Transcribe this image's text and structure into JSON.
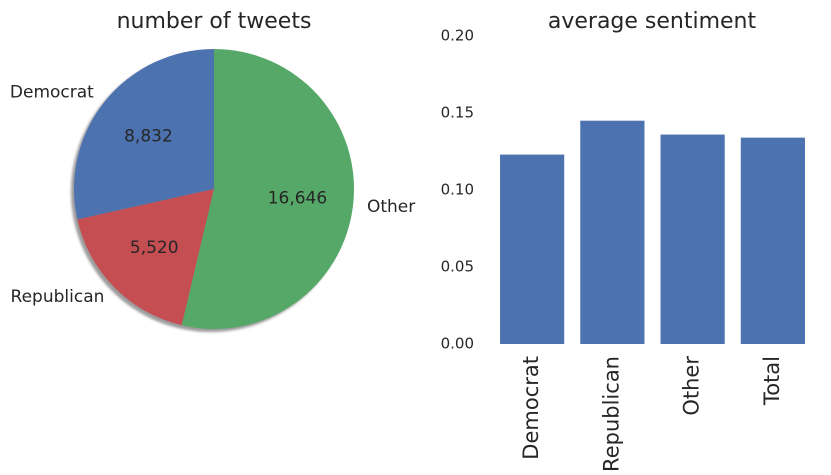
{
  "chart_data": [
    {
      "type": "pie",
      "title": "number of tweets",
      "labels": [
        "Democrat",
        "Republican",
        "Other"
      ],
      "values": [
        8832,
        5520,
        16646
      ],
      "value_labels": [
        "8,832",
        "5,520",
        "16,646"
      ],
      "colors": [
        "#4c72b0",
        "#c44e52",
        "#55a868"
      ],
      "shadow": true
    },
    {
      "type": "bar",
      "title": "average sentiment",
      "categories": [
        "Democrat",
        "Republican",
        "Other",
        "Total"
      ],
      "values": [
        0.123,
        0.145,
        0.136,
        0.134
      ],
      "ylim": [
        0,
        0.2
      ],
      "yticks": [
        "0.00",
        "0.05",
        "0.10",
        "0.15",
        "0.20"
      ],
      "color": "#4c72b0",
      "grid": false,
      "xtick_rotation": "vertical"
    }
  ]
}
